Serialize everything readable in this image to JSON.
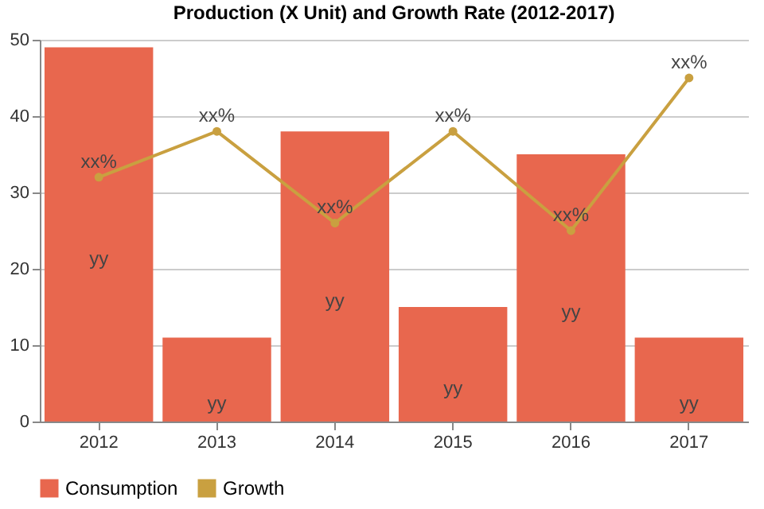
{
  "chart_data": {
    "type": "bar",
    "title": "Production (X Unit) and Growth Rate (2012-2017)",
    "categories": [
      "2012",
      "2013",
      "2014",
      "2015",
      "2016",
      "2017"
    ],
    "series": [
      {
        "name": "Consumption",
        "color": "#e8674e",
        "values": [
          49,
          11,
          38,
          15,
          35,
          11
        ],
        "value_labels": [
          "yy",
          "yy",
          "yy",
          "yy",
          "yy",
          "yy"
        ]
      },
      {
        "name": "Growth",
        "type": "line",
        "color": "#c9a040",
        "values": [
          32,
          38,
          26,
          38,
          25,
          45
        ],
        "value_labels": [
          "xx%",
          "xx%",
          "xx%",
          "xx%",
          "xx%",
          "xx%"
        ],
        "marker": "circle"
      }
    ],
    "ylim": [
      0,
      50
    ],
    "yticks": [
      0,
      10,
      20,
      30,
      40,
      50
    ],
    "grid": "y",
    "legend": "bottom"
  }
}
